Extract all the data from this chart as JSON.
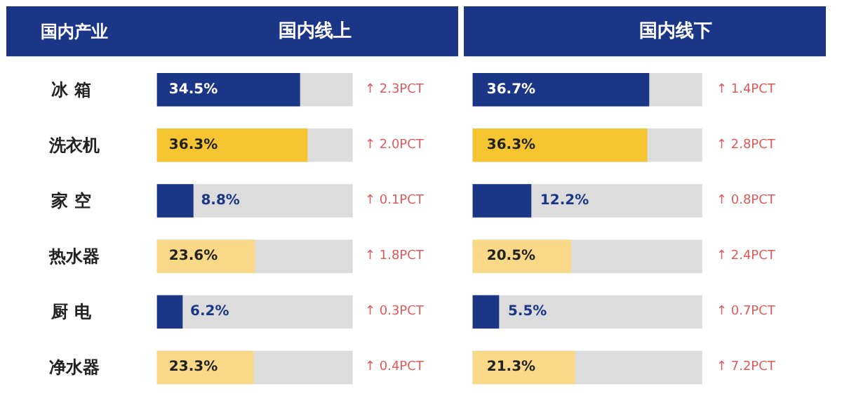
{
  "chart_data": [
    {
      "type": "bar",
      "orientation": "horizontal",
      "title": "国内线上",
      "ylabel": "国内产业",
      "categories": [
        "冰  箱",
        "洗衣机",
        "家  空",
        "热水器",
        "厨  电",
        "净水器"
      ],
      "values": [
        34.5,
        36.3,
        8.8,
        23.6,
        6.2,
        23.3
      ],
      "colors": [
        "#1b3687",
        "#f5c431",
        "#1b3687",
        "#f9d987",
        "#1b3687",
        "#f9d987"
      ],
      "value_labels": [
        "34.5%",
        "36.3%",
        "8.8%",
        "23.6%",
        "6.2%",
        "23.3%"
      ],
      "annotations": [
        "↑ 2.3PCT",
        "↑ 2.0PCT",
        "↑ 0.1PCT",
        "↑ 1.8PCT",
        "↑ 0.3PCT",
        "↑ 0.4PCT"
      ]
    },
    {
      "type": "bar",
      "orientation": "horizontal",
      "title": "国内线下",
      "categories": [
        null,
        null,
        null,
        null,
        null,
        null
      ],
      "tick_labels": false,
      "values": [
        36.7,
        36.3,
        12.2,
        20.5,
        5.5,
        21.3
      ],
      "colors": [
        "#1b3687",
        "#f5c431",
        "#1b3687",
        "#f9d987",
        "#1b3687",
        "#f9d987"
      ],
      "value_labels": [
        "36.7%",
        "36.3%",
        "12.2%",
        "20.5%",
        "5.5%",
        "21.3%"
      ],
      "annotations": [
        "↑ 1.4PCT",
        "↑ 2.8PCT",
        "↑ 0.8PCT",
        "↑ 2.4PCT",
        "↑ 0.7PCT",
        "↑ 7.2PCT"
      ]
    }
  ]
}
